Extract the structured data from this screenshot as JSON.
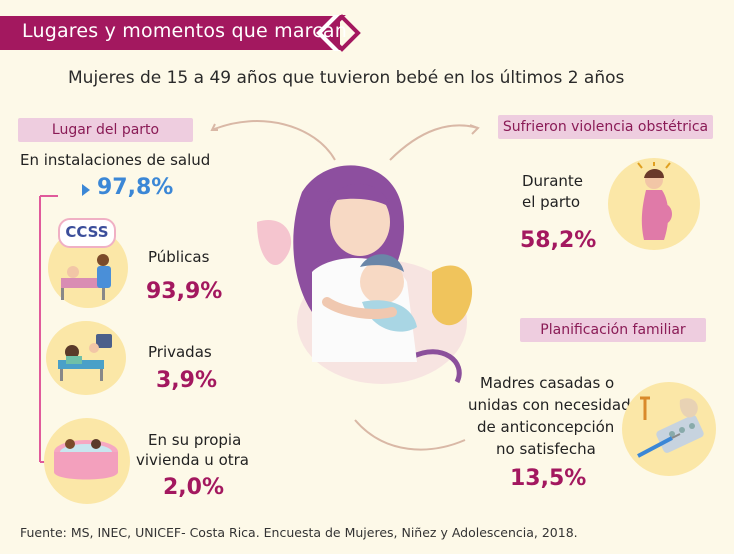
{
  "header": {
    "banner_title": "Lugares y momentos que marcan",
    "subtitle": "Mujeres de 15 a 49 años que tuvieron bebé en los últimos 2 años"
  },
  "left": {
    "tag": "Lugar del parto",
    "health_facilities": {
      "label": "En instalaciones de salud",
      "value": "97,8%"
    },
    "public": {
      "label": "Públicas",
      "value": "93,9%",
      "logo_text": "CCSS"
    },
    "private": {
      "label": "Privadas",
      "value": "3,9%"
    },
    "home": {
      "label_line1": "En su propia",
      "label_line2": "vivienda u otra",
      "value": "2,0%"
    }
  },
  "right": {
    "violence": {
      "tag": "Sufrieron violencia obstétrica",
      "label_line1": "Durante",
      "label_line2": "el parto",
      "value": "58,2%"
    },
    "planning": {
      "tag": "Planificación familiar",
      "label_line1": "Madres casadas o",
      "label_line2": "unidas con necesidad",
      "label_line3": "de anticoncepción",
      "label_line4": "no satisfecha",
      "value": "13,5%"
    }
  },
  "footer": {
    "source": "Fuente: MS, INEC, UNICEF- Costa Rica. Encuesta de Mujeres, Niñez y Adolescencia, 2018."
  },
  "colors": {
    "background": "#fdf9e8",
    "brand_magenta": "#a3185f",
    "tag_pink": "#eecddf",
    "accent_blue": "#3b87d6",
    "circle_yellow": "#fbe7a7"
  }
}
